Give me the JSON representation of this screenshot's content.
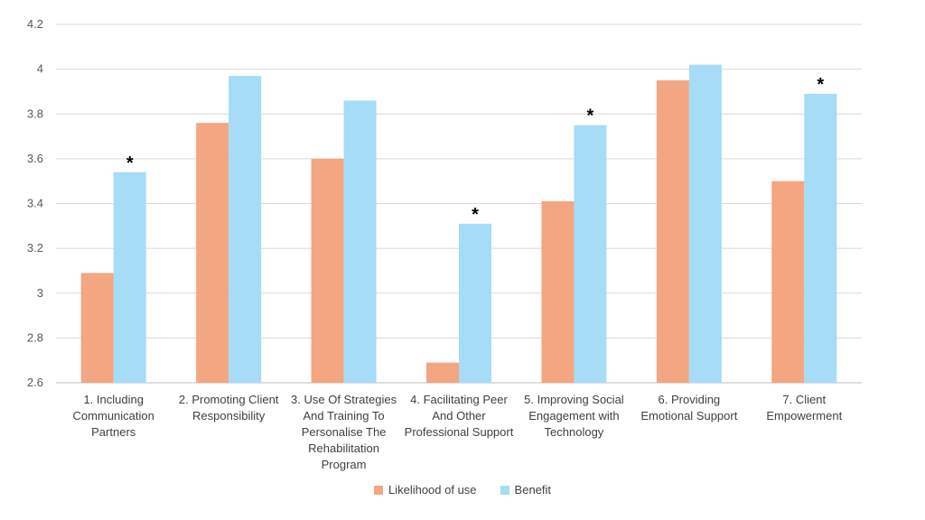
{
  "chart_data": {
    "type": "bar",
    "title": "",
    "xlabel": "",
    "ylabel": "",
    "ylim": [
      2.6,
      4.2
    ],
    "yticks": [
      "2.6",
      "2.8",
      "3",
      "3.2",
      "3.4",
      "3.6",
      "3.8",
      "4",
      "4.2"
    ],
    "grid": true,
    "legend_position": "bottom",
    "categories": [
      [
        "1. Including",
        "Communication",
        "Partners"
      ],
      [
        "2. Promoting Client",
        "Responsibility"
      ],
      [
        "3. Use Of Strategies",
        "And Training To",
        "Personalise The",
        "Rehabilitation",
        "Program"
      ],
      [
        "4. Facilitating Peer",
        "And Other",
        "Professional Support"
      ],
      [
        "5. Improving Social",
        "Engagement with",
        "Technology"
      ],
      [
        "6. Providing",
        "Emotional Support"
      ],
      [
        "7. Client",
        "Empowerment"
      ]
    ],
    "series": [
      {
        "name": "Likelihood of use",
        "color": "#F4A582",
        "values": [
          3.09,
          3.76,
          3.6,
          2.69,
          3.41,
          3.95,
          3.5
        ]
      },
      {
        "name": "Benefit",
        "color": "#A6DCF5",
        "values": [
          3.54,
          3.97,
          3.86,
          3.31,
          3.75,
          4.02,
          3.89
        ]
      }
    ],
    "annotations": {
      "marker": "*",
      "series": "Benefit",
      "category_indices": [
        0,
        3,
        4,
        6
      ]
    }
  }
}
